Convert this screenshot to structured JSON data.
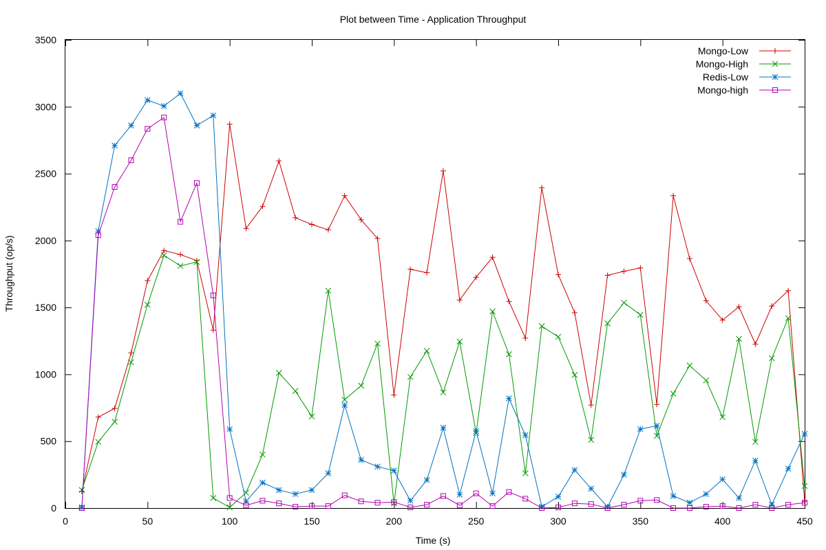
{
  "chart_data": {
    "type": "line",
    "title": "Plot between Time - Application Throughput",
    "xlabel": "Time (s)",
    "ylabel": "Throughput (op/s)",
    "xlim": [
      0,
      450
    ],
    "ylim": [
      0,
      3500
    ],
    "xticks": [
      0,
      50,
      100,
      150,
      200,
      250,
      300,
      350,
      400,
      450
    ],
    "yticks": [
      0,
      500,
      1000,
      1500,
      2000,
      2500,
      3000,
      3500
    ],
    "grid": false,
    "legend": "top-right",
    "x": [
      10,
      20,
      30,
      40,
      50,
      60,
      70,
      80,
      90,
      100,
      110,
      120,
      130,
      140,
      150,
      160,
      170,
      180,
      190,
      200,
      210,
      220,
      230,
      240,
      250,
      260,
      270,
      280,
      290,
      300,
      310,
      320,
      330,
      340,
      350,
      360,
      370,
      380,
      390,
      400,
      410,
      420,
      430,
      440,
      450
    ],
    "series": [
      {
        "name": "Mongo-Low",
        "color": "#cc0000",
        "marker": "plus",
        "values": [
          125,
          680,
          745,
          1160,
          1700,
          1925,
          1895,
          1850,
          1330,
          2870,
          2090,
          2255,
          2595,
          2170,
          2120,
          2080,
          2335,
          2155,
          2015,
          845,
          1785,
          1760,
          2520,
          1555,
          1725,
          1875,
          1545,
          1270,
          2395,
          1745,
          1460,
          770,
          1740,
          1770,
          1795,
          775,
          2335,
          1865,
          1550,
          1405,
          1505,
          1225,
          1510,
          1625,
          50
        ]
      },
      {
        "name": "Mongo-High",
        "color": "#009900",
        "marker": "x",
        "values": [
          135,
          495,
          645,
          1090,
          1520,
          1890,
          1810,
          1840,
          75,
          5,
          115,
          400,
          1010,
          875,
          685,
          1625,
          810,
          915,
          1230,
          35,
          980,
          1175,
          865,
          1245,
          560,
          1470,
          1150,
          260,
          1360,
          1280,
          995,
          510,
          1380,
          1535,
          1445,
          540,
          855,
          1065,
          955,
          680,
          1265,
          495,
          1120,
          1420,
          165
        ]
      },
      {
        "name": "Redis-Low",
        "color": "#0070c0",
        "marker": "asterisk",
        "values": [
          5,
          2070,
          2710,
          2860,
          3050,
          3005,
          3100,
          2860,
          2935,
          590,
          50,
          190,
          135,
          105,
          135,
          260,
          770,
          360,
          310,
          280,
          55,
          210,
          600,
          100,
          575,
          110,
          820,
          545,
          10,
          85,
          285,
          145,
          10,
          250,
          590,
          615,
          90,
          40,
          105,
          215,
          75,
          355,
          25,
          295,
          555
        ]
      },
      {
        "name": "Mongo-high",
        "color": "#b000b0",
        "marker": "square",
        "values": [
          0,
          2040,
          2400,
          2600,
          2835,
          2920,
          2140,
          2430,
          1590,
          75,
          20,
          55,
          35,
          10,
          15,
          15,
          95,
          50,
          40,
          45,
          5,
          25,
          90,
          20,
          110,
          15,
          120,
          70,
          0,
          5,
          35,
          30,
          0,
          25,
          55,
          60,
          0,
          0,
          10,
          15,
          0,
          25,
          0,
          25,
          40
        ]
      }
    ]
  }
}
